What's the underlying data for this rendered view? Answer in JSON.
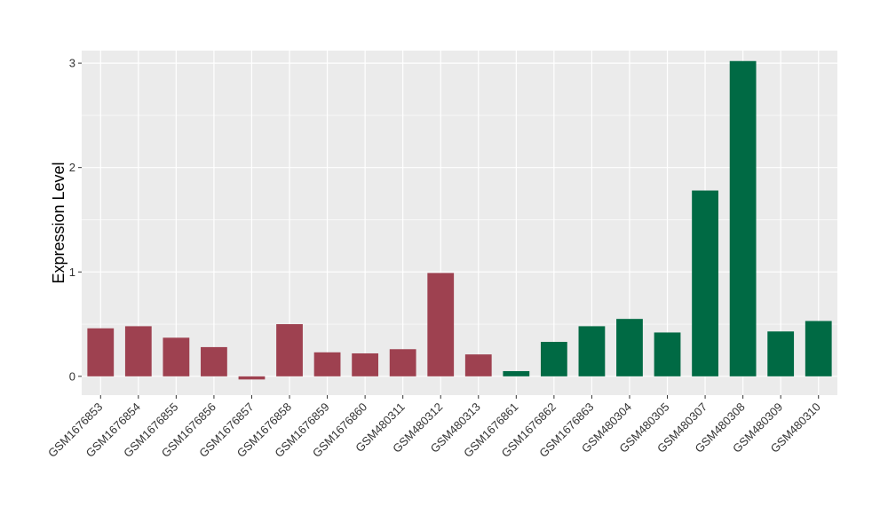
{
  "chart_data": {
    "type": "bar",
    "title": "",
    "xlabel": "",
    "ylabel": "Expression Level",
    "ylim": [
      -0.18,
      3.12
    ],
    "yticks": [
      0,
      1,
      2,
      3
    ],
    "grid": true,
    "legend": "none",
    "colors": {
      "group1": "#9e4150",
      "group2": "#006a44",
      "panel": "#ebebeb",
      "grid": "#ffffff"
    },
    "categories": [
      "GSM1676853",
      "GSM1676854",
      "GSM1676855",
      "GSM1676856",
      "GSM1676857",
      "GSM1676858",
      "GSM1676859",
      "GSM1676860",
      "GSM480311",
      "GSM480312",
      "GSM480313",
      "GSM1676861",
      "GSM1676862",
      "GSM1676863",
      "GSM480304",
      "GSM480305",
      "GSM480307",
      "GSM480308",
      "GSM480309",
      "GSM480310"
    ],
    "values": [
      0.46,
      0.48,
      0.37,
      0.28,
      -0.03,
      0.5,
      0.23,
      0.22,
      0.26,
      0.99,
      0.21,
      0.05,
      0.33,
      0.48,
      0.55,
      0.42,
      1.78,
      3.02,
      0.43,
      0.53
    ],
    "groups": [
      "group1",
      "group1",
      "group1",
      "group1",
      "group1",
      "group1",
      "group1",
      "group1",
      "group1",
      "group1",
      "group1",
      "group2",
      "group2",
      "group2",
      "group2",
      "group2",
      "group2",
      "group2",
      "group2",
      "group2"
    ]
  }
}
